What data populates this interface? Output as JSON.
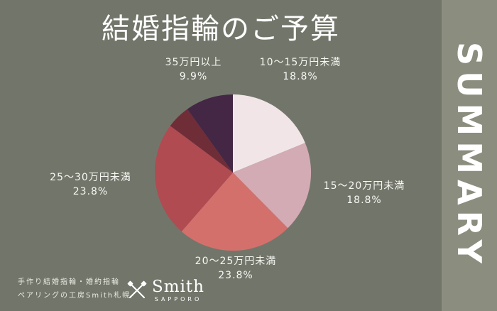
{
  "page": {
    "title": "結婚指輪のご予算",
    "summary_label": "SUMMARY"
  },
  "footer": {
    "line1": "手作り結婚指輪・婚約指輪",
    "line2": "ペアリングの工房Smith札幌",
    "logo_name": "Smith",
    "logo_city": "SAPPORO"
  },
  "colors": {
    "background": "#72766a",
    "summary_band": "#8b8e7e",
    "text": "#ffffff"
  },
  "chart_data": {
    "type": "pie",
    "title": "結婚指輪のご予算",
    "start_angle_deg": -90,
    "direction": "clockwise",
    "legend_position": "around",
    "slices": [
      {
        "label": "10〜15万円未満",
        "value": 18.8,
        "percent_text": "18.8%",
        "color": "#f2e5e8"
      },
      {
        "label": "15〜20万円未満",
        "value": 18.8,
        "percent_text": "18.8%",
        "color": "#d3abb4"
      },
      {
        "label": "20〜25万円未満",
        "value": 23.8,
        "percent_text": "23.8%",
        "color": "#d4706c"
      },
      {
        "label": "25〜30万円未満",
        "value": 23.8,
        "percent_text": "23.8%",
        "color": "#b04b52"
      },
      {
        "label": "",
        "value": 4.9,
        "percent_text": "",
        "color": "#6f2d38"
      },
      {
        "label": "35万円以上",
        "value": 9.9,
        "percent_text": "9.9%",
        "color": "#442645"
      }
    ]
  }
}
